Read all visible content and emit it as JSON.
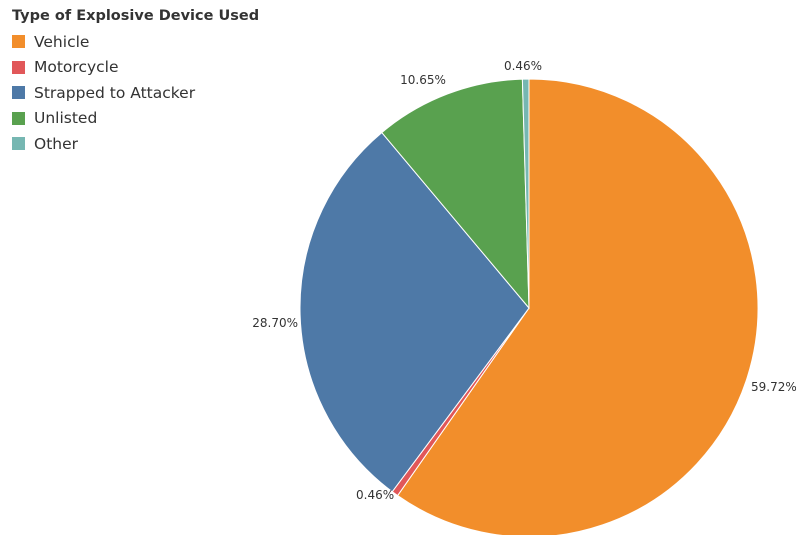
{
  "chart_data": {
    "type": "pie",
    "title": "",
    "legend": {
      "title": "Type of Explosive Device Used",
      "placement": "top-left"
    },
    "categories": [
      "Vehicle",
      "Motorcycle",
      "Strapped to Attacker",
      "Unlisted",
      "Other"
    ],
    "values": [
      59.72,
      0.46,
      28.7,
      10.65,
      0.46
    ],
    "labels": [
      "59.72%",
      "0.46%",
      "28.70%",
      "10.65%",
      "0.46%"
    ],
    "colors": [
      "#f28e2b",
      "#e15759",
      "#4e79a7",
      "#59a14f",
      "#76b7b2"
    ],
    "start_angle": "12 o'clock",
    "direction": "clockwise"
  }
}
